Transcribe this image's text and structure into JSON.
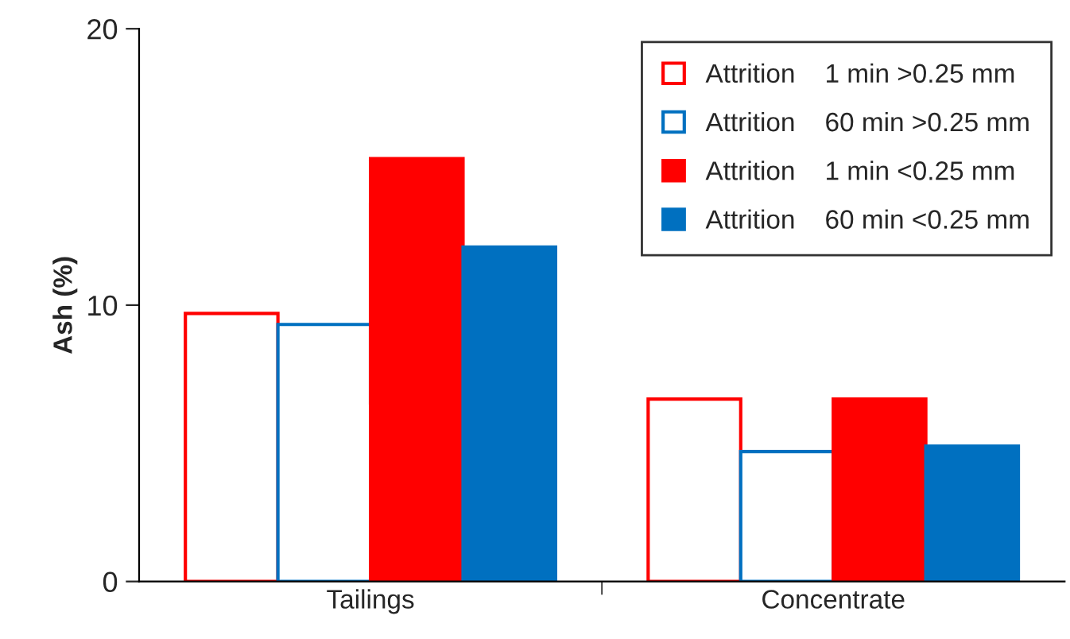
{
  "chart_data": {
    "type": "bar",
    "ylabel": "Ash (%)",
    "categories": [
      "Tailings",
      "Concentrate"
    ],
    "series": [
      {
        "name": "Attrition    1 min >0.25 mm",
        "color": "#ff0000",
        "values": [
          9.7,
          6.6
        ]
      },
      {
        "name": "Attrition    60 min >0.25 mm",
        "color": "#0070c0",
        "values": [
          9.3,
          4.7
        ]
      },
      {
        "name": "Attrition    1 min <0.25 mm",
        "color": "#ff0000",
        "values": [
          15.3,
          6.6
        ]
      },
      {
        "name": "Attrition    60 min <0.25 mm",
        "color": "#0070c0",
        "values": [
          12.1,
          4.9
        ]
      }
    ],
    "ylim": [
      0,
      20
    ],
    "yticks": [
      0,
      10,
      20
    ],
    "legend": "top right",
    "grid": false
  }
}
